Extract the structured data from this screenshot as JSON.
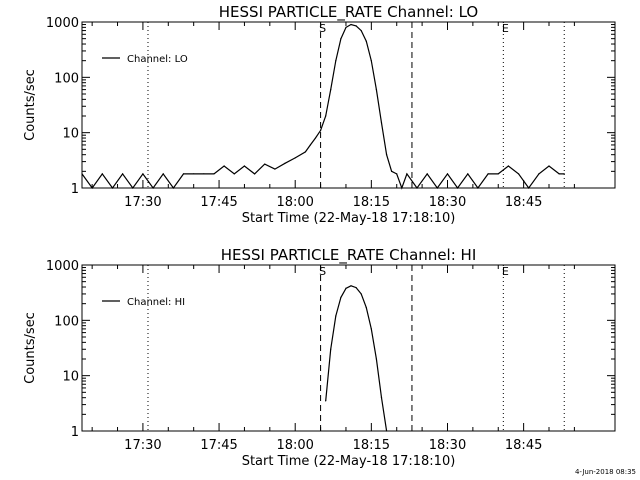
{
  "chart_data": [
    {
      "type": "line",
      "title": "HESSI PARTICLE_RATE Channel: LO",
      "xlabel": "Start Time (22-May-18 17:18:10)",
      "ylabel": "Counts/sec",
      "yscale": "log",
      "xlim": [
        "17:18",
        "19:03"
      ],
      "ylim": [
        1,
        1000
      ],
      "x_ticks": [
        "17:30",
        "17:45",
        "18:00",
        "18:15",
        "18:30",
        "18:45"
      ],
      "y_ticks": [
        "1",
        "10",
        "100",
        "1000"
      ],
      "legend": "top-left",
      "grid": false,
      "markers": [
        {
          "label": "S",
          "time": "18:05",
          "style": "dashed"
        },
        {
          "label": "",
          "time": "18:23",
          "style": "dashed"
        },
        {
          "label": "E",
          "time": "18:41",
          "style": "dotted"
        },
        {
          "label": "",
          "time": "17:31",
          "style": "dotted"
        },
        {
          "label": "",
          "time": "18:53",
          "style": "dotted"
        }
      ],
      "series": [
        {
          "name": "Channel: LO",
          "x": [
            "17:18",
            "17:20",
            "17:22",
            "17:24",
            "17:26",
            "17:28",
            "17:30",
            "17:32",
            "17:34",
            "17:36",
            "17:38",
            "17:40",
            "17:42",
            "17:44",
            "17:46",
            "17:48",
            "17:50",
            "17:52",
            "17:54",
            "17:56",
            "17:58",
            "18:00",
            "18:02",
            "18:03",
            "18:04",
            "18:05",
            "18:06",
            "18:07",
            "18:08",
            "18:09",
            "18:10",
            "18:11",
            "18:12",
            "18:13",
            "18:14",
            "18:15",
            "18:16",
            "18:17",
            "18:18",
            "18:19",
            "18:20",
            "18:21",
            "18:22",
            "18:24",
            "18:26",
            "18:28",
            "18:30",
            "18:32",
            "18:34",
            "18:36",
            "18:38",
            "18:40",
            "18:42",
            "18:44",
            "18:46",
            "18:48",
            "18:50",
            "18:52",
            "18:53"
          ],
          "y": [
            1.8,
            1.0,
            1.8,
            1.0,
            1.8,
            1.0,
            1.8,
            1.0,
            1.8,
            1.0,
            1.8,
            1.8,
            1.8,
            1.8,
            2.5,
            1.8,
            2.5,
            1.8,
            2.7,
            2.2,
            2.8,
            3.5,
            4.5,
            6.0,
            8.0,
            11.0,
            20.0,
            60.0,
            200.0,
            500.0,
            800.0,
            900.0,
            850.0,
            700.0,
            450.0,
            200.0,
            60.0,
            15.0,
            4.0,
            2.0,
            1.8,
            1.0,
            1.8,
            1.0,
            1.8,
            1.0,
            1.8,
            1.0,
            1.8,
            1.0,
            1.8,
            1.8,
            2.5,
            1.8,
            1.0,
            1.8,
            2.5,
            1.8,
            1.8
          ]
        }
      ]
    },
    {
      "type": "line",
      "title": "HESSI PARTICLE_RATE Channel: HI",
      "xlabel": "Start Time (22-May-18 17:18:10)",
      "ylabel": "Counts/sec",
      "yscale": "log",
      "xlim": [
        "17:18",
        "19:03"
      ],
      "ylim": [
        1,
        1000
      ],
      "x_ticks": [
        "17:30",
        "17:45",
        "18:00",
        "18:15",
        "18:30",
        "18:45"
      ],
      "y_ticks": [
        "1",
        "10",
        "100",
        "1000"
      ],
      "legend": "top-left",
      "grid": false,
      "markers": [
        {
          "label": "S",
          "time": "18:05",
          "style": "dashed"
        },
        {
          "label": "",
          "time": "18:23",
          "style": "dashed"
        },
        {
          "label": "E",
          "time": "18:41",
          "style": "dotted"
        },
        {
          "label": "",
          "time": "17:31",
          "style": "dotted"
        },
        {
          "label": "",
          "time": "18:53",
          "style": "dotted"
        }
      ],
      "series": [
        {
          "name": "Channel: HI",
          "x": [
            "18:06",
            "18:07",
            "18:08",
            "18:09",
            "18:10",
            "18:11",
            "18:12",
            "18:13",
            "18:14",
            "18:15",
            "18:16",
            "18:17",
            "18:18"
          ],
          "y": [
            3.5,
            30.0,
            120.0,
            260.0,
            380.0,
            420.0,
            390.0,
            300.0,
            170.0,
            70.0,
            20.0,
            4.0,
            1.0
          ]
        }
      ]
    }
  ],
  "footer": {
    "stamp": "4-Jun-2018 08:35"
  }
}
